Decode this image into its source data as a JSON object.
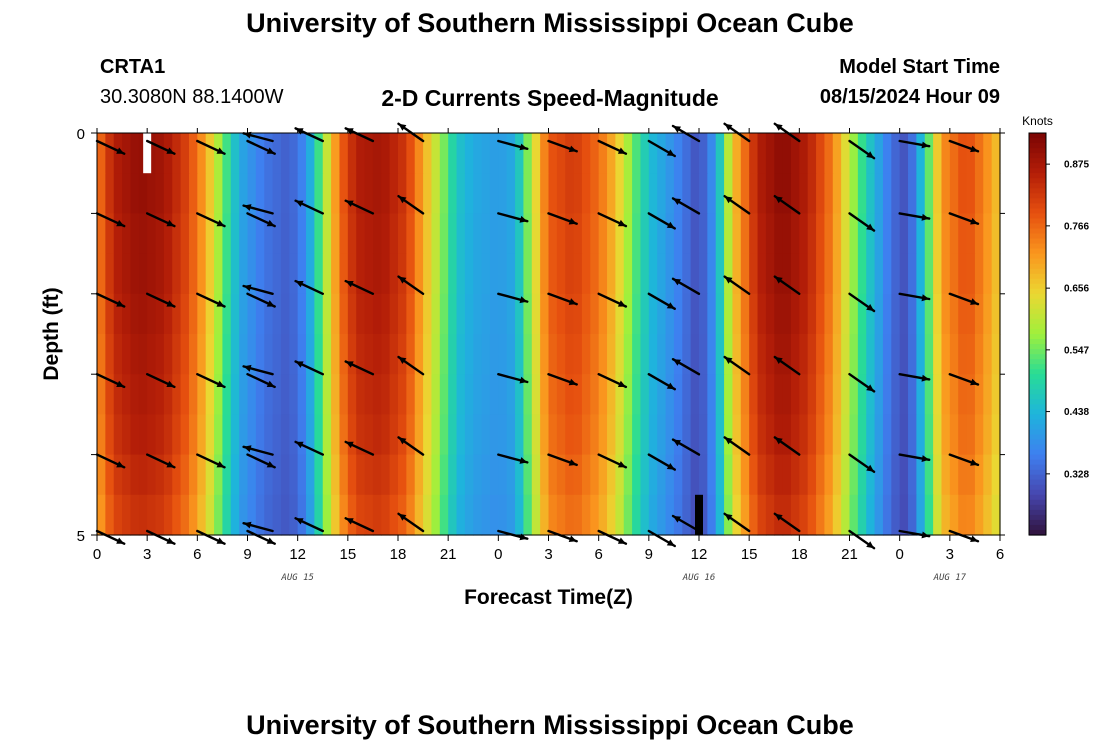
{
  "titles": {
    "main": "University of Southern Mississippi Ocean Cube",
    "repeat": "University of Southern Mississippi Ocean Cube"
  },
  "station": {
    "id": "CRTA1",
    "coords": "30.3080N  88.1400W"
  },
  "model": {
    "label": "Model Start Time",
    "start": "08/15/2024 Hour 09"
  },
  "chart_data": {
    "type": "heatmap",
    "title": "2-D Currents Speed-Magnitude",
    "xlabel": "Forecast Time(Z)",
    "ylabel": "Depth (ft)",
    "x_ticks": [
      "0",
      "3",
      "6",
      "9",
      "12",
      "15",
      "18",
      "21",
      "0",
      "3",
      "6",
      "9",
      "12",
      "15",
      "18",
      "21",
      "0",
      "3",
      "6"
    ],
    "x_range_hours": [
      0,
      54
    ],
    "date_labels": [
      {
        "text": "AUG 15",
        "hour": 12
      },
      {
        "text": "AUG 16",
        "hour": 36
      },
      {
        "text": "AUG 17",
        "hour": 51
      }
    ],
    "y_ticks": [
      "0",
      "5"
    ],
    "y_range_ft": [
      0,
      5
    ],
    "depth_levels_ft": [
      0.25,
      0.75,
      1.25,
      1.75,
      2.25,
      2.75,
      3.25,
      3.75,
      4.25,
      4.75
    ],
    "colorbar": {
      "label": "Knots",
      "min": 0.22,
      "max": 0.93,
      "ticks": [
        "0.875",
        "0.766",
        "0.656",
        "0.547",
        "0.438",
        "0.328"
      ]
    },
    "speed_profile_knots": [
      [
        0,
        0.74
      ],
      [
        1,
        0.86
      ],
      [
        2.5,
        0.9
      ],
      [
        4,
        0.88
      ],
      [
        5.5,
        0.8
      ],
      [
        6.5,
        0.7
      ],
      [
        7.5,
        0.55
      ],
      [
        8.5,
        0.42
      ],
      [
        10,
        0.35
      ],
      [
        11.5,
        0.32
      ],
      [
        12.5,
        0.38
      ],
      [
        13.5,
        0.56
      ],
      [
        14.5,
        0.76
      ],
      [
        15.5,
        0.86
      ],
      [
        17,
        0.88
      ],
      [
        18.5,
        0.82
      ],
      [
        19.5,
        0.7
      ],
      [
        20.5,
        0.58
      ],
      [
        21.5,
        0.46
      ],
      [
        22.5,
        0.42
      ],
      [
        24,
        0.4
      ],
      [
        25,
        0.42
      ],
      [
        26,
        0.6
      ],
      [
        27,
        0.78
      ],
      [
        28.5,
        0.82
      ],
      [
        30,
        0.76
      ],
      [
        31,
        0.68
      ],
      [
        32,
        0.55
      ],
      [
        33,
        0.45
      ],
      [
        34.5,
        0.38
      ],
      [
        36,
        0.3
      ],
      [
        37,
        0.4
      ],
      [
        38,
        0.66
      ],
      [
        39.5,
        0.86
      ],
      [
        41,
        0.91
      ],
      [
        42.5,
        0.86
      ],
      [
        44,
        0.74
      ],
      [
        45,
        0.6
      ],
      [
        46,
        0.48
      ],
      [
        47.5,
        0.34
      ],
      [
        48.5,
        0.3
      ],
      [
        49.5,
        0.48
      ],
      [
        50.5,
        0.72
      ],
      [
        52,
        0.8
      ],
      [
        53,
        0.74
      ],
      [
        54,
        0.66
      ]
    ],
    "depth_factor": [
      1.0,
      1.0,
      0.99,
      0.99,
      0.98,
      0.97,
      0.96,
      0.95,
      0.93,
      0.91
    ],
    "vector_rows_ft": [
      0.1,
      1.0,
      2.0,
      3.0,
      4.0,
      4.95
    ],
    "vector_hours": [
      0,
      3,
      6,
      9,
      10.5,
      13.5,
      16.5,
      19.5,
      24,
      27,
      30,
      33,
      36,
      39,
      42,
      45,
      48,
      51
    ],
    "vector_angles_deg": [
      25,
      25,
      25,
      25,
      195,
      205,
      205,
      215,
      15,
      20,
      25,
      30,
      210,
      215,
      215,
      35,
      10,
      20
    ],
    "markers": [
      {
        "hour": 3,
        "depth_ft": [
          0,
          0.5
        ],
        "color": "#ffffff"
      },
      {
        "hour": 36,
        "depth_ft": [
          4.5,
          5
        ],
        "color": "#000000"
      }
    ]
  }
}
